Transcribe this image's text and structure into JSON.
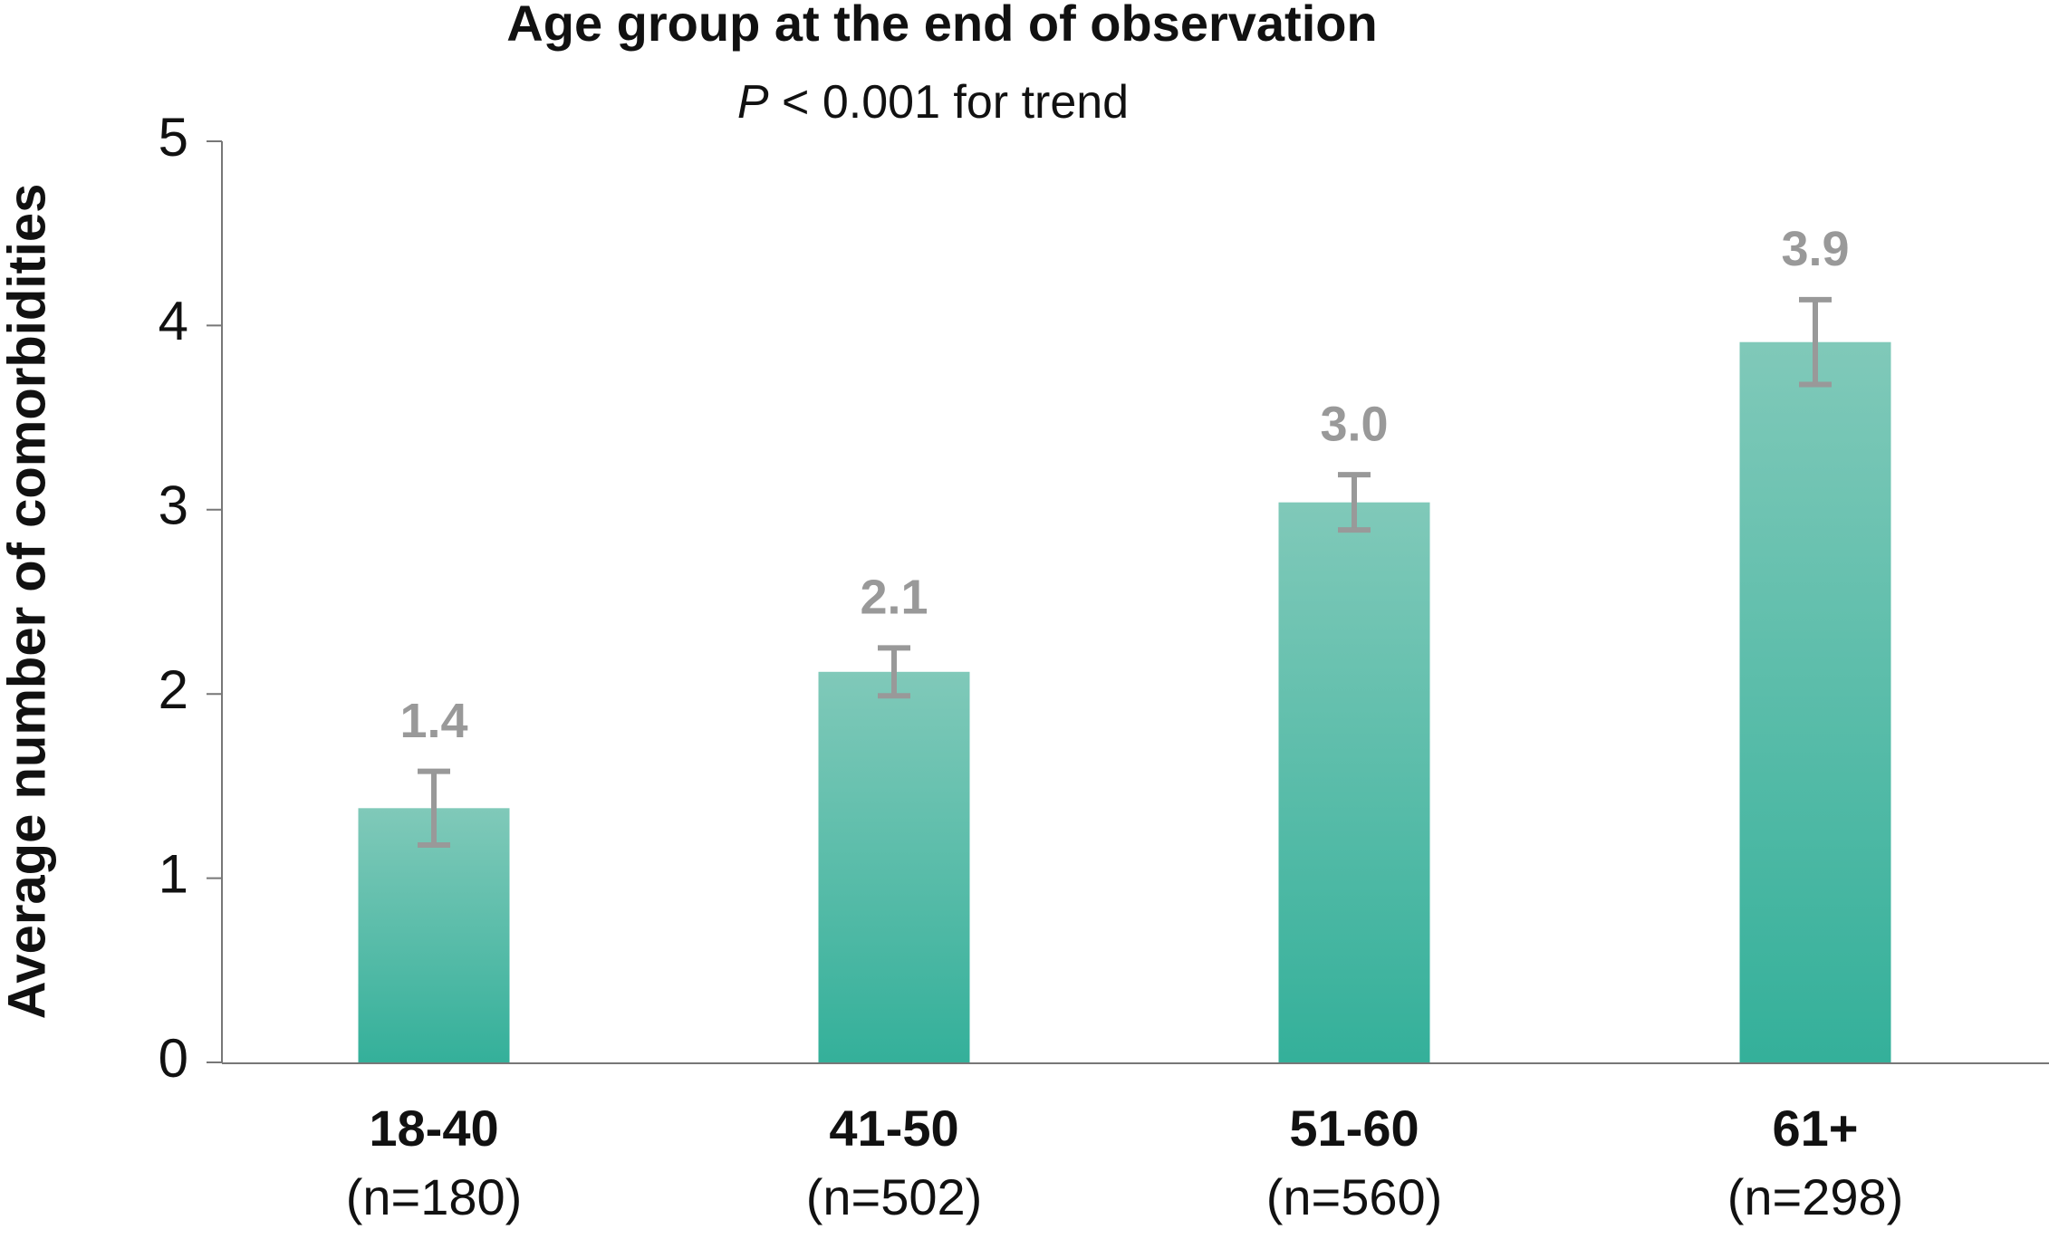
{
  "chart_data": {
    "type": "bar",
    "title": "Age group at the end of observation",
    "subtitle_italic": "P",
    "subtitle": "< 0.001 for trend",
    "y_label": "Average number of comorbidities",
    "categories": [
      "18-40",
      "41-50",
      "51-60",
      "61+"
    ],
    "category_notes": [
      "(n=180)",
      "(n=502)",
      "(n=560)",
      "(n=298)"
    ],
    "values": [
      1.38,
      2.12,
      3.04,
      3.91
    ],
    "value_labels": [
      "1.4",
      "2.1",
      "3.0",
      "3.9"
    ],
    "errors": [
      0.2,
      0.13,
      0.15,
      0.23
    ],
    "color_top": "#80c9b9",
    "color_bottom": "#34b09a",
    "error_color": "#999999",
    "ylim": [
      0,
      5
    ],
    "yticks": [
      0,
      1,
      2,
      3,
      4,
      5
    ],
    "grid": false
  }
}
